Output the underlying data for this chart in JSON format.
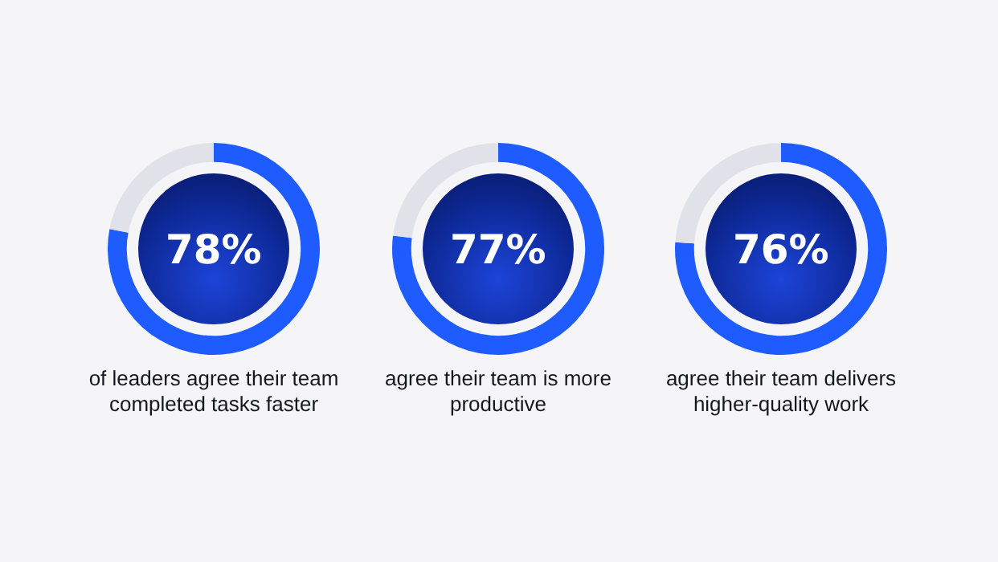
{
  "chart_data": [
    {
      "type": "donut",
      "title": "of leaders agree their team completed tasks faster",
      "categories": [
        null,
        null
      ],
      "values": [
        78,
        22
      ],
      "colors": [
        "#1f5cff",
        "#e1e1ea"
      ],
      "value_labels": [
        "78%",
        null
      ]
    },
    {
      "type": "donut",
      "title": "agree their team is more productive",
      "categories": [
        null,
        null
      ],
      "values": [
        77,
        23
      ],
      "colors": [
        "#1f5cff",
        "#e1e1ea"
      ],
      "value_labels": [
        "77%",
        null
      ]
    },
    {
      "type": "donut",
      "title": "agree their team delivers higher-quality work",
      "categories": [
        null,
        null
      ],
      "values": [
        76,
        24
      ],
      "colors": [
        "#1f5cff",
        "#e1e1ea"
      ],
      "value_labels": [
        "76%",
        null
      ]
    }
  ]
}
